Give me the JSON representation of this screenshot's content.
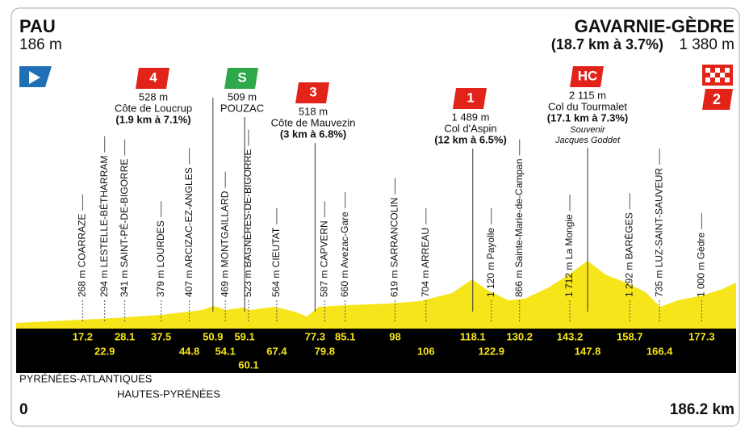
{
  "start": {
    "name": "PAU",
    "altitude": "186 m",
    "distance": 0
  },
  "finish": {
    "name": "GAVARNIE-GÈDRE",
    "climb": "(18.7 km à 3.7%)",
    "altitude": "1 380 m",
    "badge": "2",
    "distance": 186.2,
    "unit": "km"
  },
  "climbs": [
    {
      "badge": "4",
      "altitude": "528 m",
      "name": "Côte de Loucrup",
      "detail": "(1.9 km à 7.1%)"
    },
    {
      "badge": "S",
      "altitude": "509 m",
      "name": "POUZAC"
    },
    {
      "badge": "3",
      "altitude": "518 m",
      "name": "Côte de Mauvezin",
      "detail": "(3 km à 6.8%)"
    },
    {
      "badge": "1",
      "altitude": "1 489 m",
      "name": "Col d'Aspin",
      "detail": "(12 km à 6.5%)"
    },
    {
      "badge": "HC",
      "altitude": "2 115 m",
      "name": "Col du Tourmalet",
      "detail": "(17.1 km à 7.3%)",
      "note": [
        "Souvenir",
        "Jacques Goddet"
      ]
    }
  ],
  "waypoints": [
    "268 m COARRAZE",
    "294 m LESTELLE-BÉTHARRAM",
    "341 m SAINT-PÉ-DE-BIGORRE",
    "379 m LOURDES",
    "407 m ARCIZAC-EZ-ANGLES",
    "469 m MONTGAILLARD",
    "523 m BAGNÈRES-DE-BIGORRE",
    "564 m CIEUTAT",
    "587 m CAPVERN",
    "660 m Avezac-Gare",
    "619 m SARRANCOLIN",
    "704 m ARREAU",
    "1 120 m Payolle",
    "866 m Sainte-Marie-de-Campan",
    "1 712 m La Mongie",
    "1 292 m BARÈGES",
    "735 m LUZ-SAINT-SAUVEUR",
    "1 000 m Gèdre"
  ],
  "km_markers": [
    17.2,
    22.9,
    28.1,
    37.5,
    44.8,
    50.9,
    54.1,
    59.1,
    60.1,
    67.4,
    77.3,
    79.8,
    85.1,
    98,
    106,
    118.1,
    122.9,
    130.2,
    143.2,
    147.8,
    158.7,
    166.4,
    177.3
  ],
  "departments": [
    "PYRÉNÉES-ATLANTIQUES",
    "HAUTES-PYRÉNÉES"
  ]
}
